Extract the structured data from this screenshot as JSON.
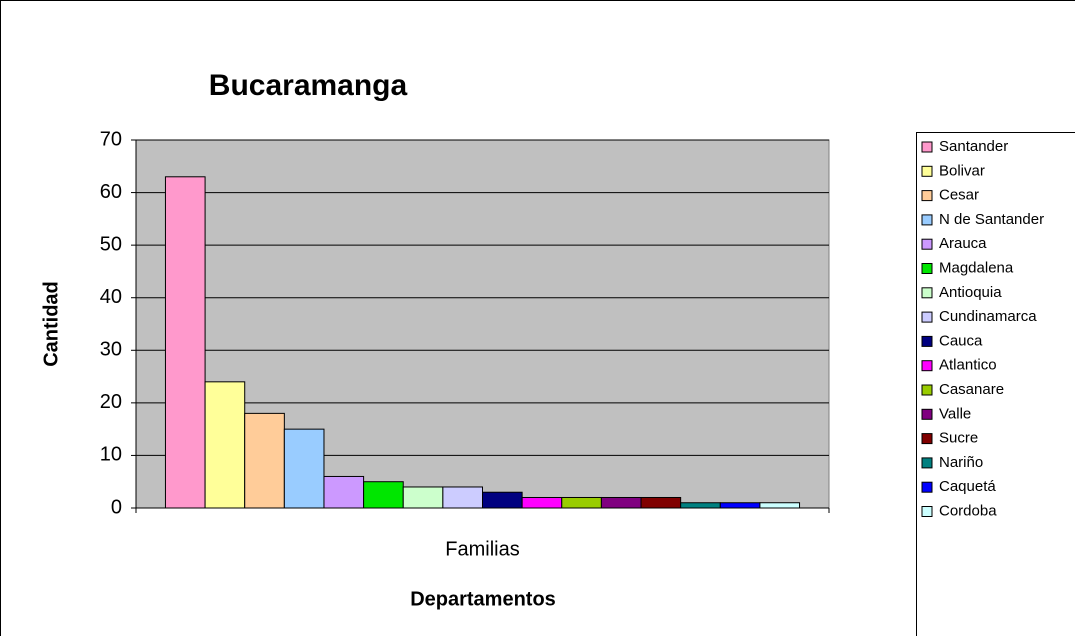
{
  "chart_data": {
    "type": "bar",
    "title": "Bucaramanga",
    "x_label": "Departamentos",
    "y_label": "Cantidad",
    "categories": [
      "Familias"
    ],
    "ylim": [
      0,
      70
    ],
    "yticks": [
      0,
      10,
      20,
      30,
      40,
      50,
      60,
      70
    ],
    "grid": true,
    "legend": "right",
    "series": [
      {
        "name": "Santander",
        "color": "#ff99cc",
        "values": [
          63
        ]
      },
      {
        "name": "Bolivar",
        "color": "#ffff99",
        "values": [
          24
        ]
      },
      {
        "name": "Cesar",
        "color": "#ffcc99",
        "values": [
          18
        ]
      },
      {
        "name": "N de Santander",
        "color": "#99ccff",
        "values": [
          15
        ]
      },
      {
        "name": "Arauca",
        "color": "#cc99ff",
        "values": [
          6
        ]
      },
      {
        "name": "Magdalena",
        "color": "#00e600",
        "values": [
          5
        ]
      },
      {
        "name": "Antioquia",
        "color": "#ccffcc",
        "values": [
          4
        ]
      },
      {
        "name": "Cundinamarca",
        "color": "#ccccff",
        "values": [
          4
        ]
      },
      {
        "name": "Cauca",
        "color": "#000080",
        "values": [
          3
        ]
      },
      {
        "name": "Atlantico",
        "color": "#ff00ff",
        "values": [
          2
        ]
      },
      {
        "name": "Casanare",
        "color": "#99cc00",
        "values": [
          2
        ]
      },
      {
        "name": "Valle",
        "color": "#800080",
        "values": [
          2
        ]
      },
      {
        "name": "Sucre",
        "color": "#800000",
        "values": [
          2
        ]
      },
      {
        "name": "Nariño",
        "color": "#008080",
        "values": [
          1
        ]
      },
      {
        "name": "Caquetá",
        "color": "#0000ff",
        "values": [
          1
        ]
      },
      {
        "name": "Cordoba",
        "color": "#ccffff",
        "values": [
          1
        ]
      }
    ]
  }
}
